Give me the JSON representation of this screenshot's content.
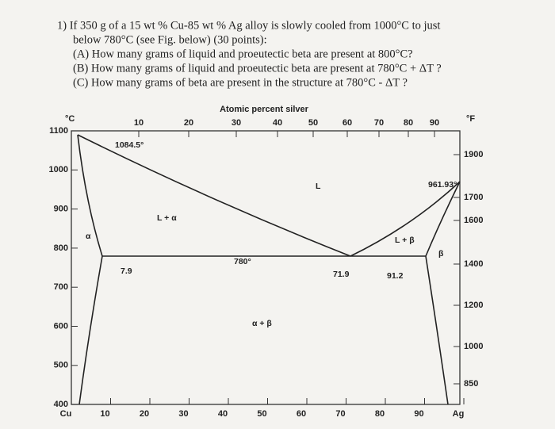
{
  "problem": {
    "lines": [
      "1) If 350 g of a 15 wt % Cu-85 wt % Ag alloy is slowly cooled from 1000°C to just",
      "below 780°C (see Fig. below) (30 points):",
      "(A) How many grams of liquid and proeutectic beta are present at 800°C?",
      "(B) How many grams of liquid and proeutectic beta are present at 780°C + ΔT ?",
      "(C) How many grams of beta are present in the structure at 780°C - ΔT ?"
    ]
  },
  "figure": {
    "top_axis_title": "Atomic percent silver",
    "celsius_unit": "°C",
    "fahrenheit_unit": "°F",
    "top_ticks": [
      "10",
      "20",
      "30",
      "40",
      "50",
      "60",
      "70",
      "80",
      "90"
    ],
    "bottom_ticks": [
      "Cu",
      "10",
      "20",
      "30",
      "40",
      "50",
      "60",
      "70",
      "80",
      "90",
      "Ag"
    ],
    "left_ticks": [
      "1100",
      "1000",
      "900",
      "800",
      "700",
      "600",
      "500",
      "400"
    ],
    "right_ticks": [
      "1900",
      "1700",
      "1600",
      "1400",
      "1200",
      "1000",
      "850"
    ],
    "labels": [
      "1084.5°",
      "L",
      "961.93°",
      "L + α",
      "α",
      "L + β",
      "β",
      "780°",
      "7.9",
      "71.9",
      "91.2",
      "α + β"
    ]
  }
}
